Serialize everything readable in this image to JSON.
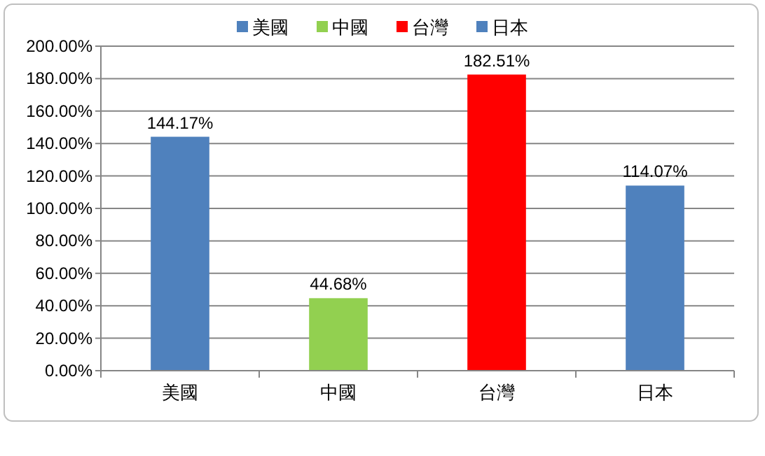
{
  "chart_data": {
    "type": "bar",
    "categories": [
      "美國",
      "中國",
      "台灣",
      "日本"
    ],
    "series": [
      {
        "name": "美國",
        "color": "#4f81bd",
        "values": [
          144.17,
          null,
          null,
          null
        ],
        "value_labels": [
          "144.17%",
          null,
          null,
          null
        ]
      },
      {
        "name": "中國",
        "color": "#92d050",
        "values": [
          null,
          44.68,
          null,
          null
        ],
        "value_labels": [
          null,
          "44.68%",
          null,
          null
        ]
      },
      {
        "name": "台灣",
        "color": "#ff0000",
        "values": [
          null,
          null,
          182.51,
          null
        ],
        "value_labels": [
          null,
          null,
          "182.51%",
          null
        ]
      },
      {
        "name": "日本",
        "color": "#4f81bd",
        "values": [
          null,
          null,
          null,
          114.07
        ],
        "value_labels": [
          null,
          null,
          null,
          "114.07%"
        ]
      }
    ],
    "ylim": [
      0,
      200
    ],
    "yticks": [
      {
        "value": 0,
        "label": "0.00%"
      },
      {
        "value": 20,
        "label": "20.00%"
      },
      {
        "value": 40,
        "label": "40.00%"
      },
      {
        "value": 60,
        "label": "60.00%"
      },
      {
        "value": 80,
        "label": "80.00%"
      },
      {
        "value": 100,
        "label": "100.00%"
      },
      {
        "value": 120,
        "label": "120.00%"
      },
      {
        "value": 140,
        "label": "140.00%"
      },
      {
        "value": 160,
        "label": "160.00%"
      },
      {
        "value": 180,
        "label": "180.00%"
      },
      {
        "value": 200,
        "label": "200.00%"
      }
    ],
    "grid": "y",
    "legend": "top"
  }
}
